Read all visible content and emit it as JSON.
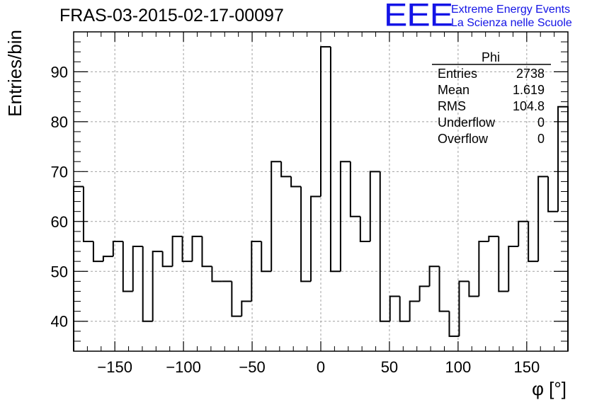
{
  "chart_data": {
    "type": "bar",
    "title": "FRAS-03-2015-02-17-00097",
    "xlabel": "φ [°]",
    "ylabel": "Entries/bin",
    "xlim": [
      -180,
      180
    ],
    "ylim": [
      34,
      98
    ],
    "bin_width": 7.2,
    "xticks": [
      -150,
      -100,
      -50,
      0,
      50,
      100,
      150
    ],
    "yticks": [
      40,
      50,
      60,
      70,
      80,
      90
    ],
    "grid": true,
    "values": [
      67,
      56,
      52,
      53,
      56,
      46,
      55,
      40,
      54,
      51,
      57,
      52,
      57,
      51,
      48,
      48,
      41,
      44,
      56,
      50,
      72,
      69,
      67,
      48,
      65,
      95,
      50,
      72,
      61,
      56,
      70,
      40,
      45,
      40,
      44,
      47,
      51,
      42,
      37,
      48,
      45,
      56,
      57,
      46,
      55,
      60,
      52,
      69,
      62,
      83
    ],
    "stats": {
      "name": "Phi",
      "rows": [
        {
          "label": "Entries",
          "value": "2738"
        },
        {
          "label": "Mean",
          "value": "1.619"
        },
        {
          "label": "RMS",
          "value": "104.8"
        },
        {
          "label": "Underflow",
          "value": "0"
        },
        {
          "label": "Overflow",
          "value": "0"
        }
      ]
    }
  },
  "logo": {
    "mark": "EEE",
    "line1": "Extreme Energy Events",
    "line2": "La Scienza nelle Scuole",
    "color": "#1414e6"
  }
}
